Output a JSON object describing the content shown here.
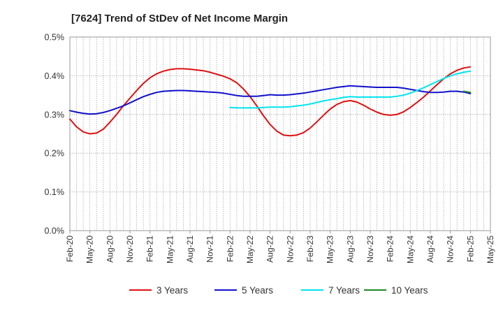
{
  "chart_data": {
    "type": "line",
    "title": "[7624]  Trend of StDev of Net Income Margin",
    "xlabel": "",
    "ylabel": "",
    "x_ticks": [
      "Feb-20",
      "May-20",
      "Aug-20",
      "Nov-20",
      "Feb-21",
      "May-21",
      "Aug-21",
      "Nov-21",
      "Feb-22",
      "May-22",
      "Aug-22",
      "Nov-22",
      "Feb-23",
      "May-23",
      "Aug-23",
      "Nov-23",
      "Feb-24",
      "May-24",
      "Aug-24",
      "Nov-24",
      "Feb-25",
      "May-25"
    ],
    "y_ticks": [
      "0.0%",
      "0.1%",
      "0.2%",
      "0.3%",
      "0.4%",
      "0.5%"
    ],
    "ylim": [
      0,
      0.5
    ],
    "y_unit": "%",
    "grid": true,
    "legend_position": "bottom",
    "series": [
      {
        "name": "3 Years",
        "color": "#dd1111",
        "points": [
          [
            "Feb-20",
            0.288
          ],
          [
            "Mar-20",
            0.268
          ],
          [
            "Apr-20",
            0.255
          ],
          [
            "May-20",
            0.25
          ],
          [
            "Jun-20",
            0.252
          ],
          [
            "Jul-20",
            0.262
          ],
          [
            "Aug-20",
            0.28
          ],
          [
            "Sep-20",
            0.3
          ],
          [
            "Oct-20",
            0.322
          ],
          [
            "Nov-20",
            0.342
          ],
          [
            "Dec-20",
            0.362
          ],
          [
            "Jan-21",
            0.38
          ],
          [
            "Feb-21",
            0.395
          ],
          [
            "Mar-21",
            0.405
          ],
          [
            "Apr-21",
            0.412
          ],
          [
            "May-21",
            0.416
          ],
          [
            "Jun-21",
            0.418
          ],
          [
            "Jul-21",
            0.418
          ],
          [
            "Aug-21",
            0.417
          ],
          [
            "Sep-21",
            0.415
          ],
          [
            "Oct-21",
            0.413
          ],
          [
            "Nov-21",
            0.409
          ],
          [
            "Dec-21",
            0.404
          ],
          [
            "Jan-22",
            0.399
          ],
          [
            "Feb-22",
            0.392
          ],
          [
            "Mar-22",
            0.382
          ],
          [
            "Apr-22",
            0.366
          ],
          [
            "May-22",
            0.346
          ],
          [
            "Jun-22",
            0.322
          ],
          [
            "Jul-22",
            0.297
          ],
          [
            "Aug-22",
            0.274
          ],
          [
            "Sep-22",
            0.257
          ],
          [
            "Oct-22",
            0.247
          ],
          [
            "Nov-22",
            0.245
          ],
          [
            "Dec-22",
            0.247
          ],
          [
            "Jan-23",
            0.253
          ],
          [
            "Feb-23",
            0.265
          ],
          [
            "Mar-23",
            0.281
          ],
          [
            "Apr-23",
            0.298
          ],
          [
            "May-23",
            0.314
          ],
          [
            "Jun-23",
            0.326
          ],
          [
            "Jul-23",
            0.333
          ],
          [
            "Aug-23",
            0.336
          ],
          [
            "Sep-23",
            0.332
          ],
          [
            "Oct-23",
            0.324
          ],
          [
            "Nov-23",
            0.314
          ],
          [
            "Dec-23",
            0.306
          ],
          [
            "Jan-24",
            0.3
          ],
          [
            "Feb-24",
            0.298
          ],
          [
            "Mar-24",
            0.3
          ],
          [
            "Apr-24",
            0.307
          ],
          [
            "May-24",
            0.318
          ],
          [
            "Jun-24",
            0.331
          ],
          [
            "Jul-24",
            0.345
          ],
          [
            "Aug-24",
            0.361
          ],
          [
            "Sep-24",
            0.377
          ],
          [
            "Oct-24",
            0.392
          ],
          [
            "Nov-24",
            0.405
          ],
          [
            "Dec-24",
            0.414
          ],
          [
            "Jan-25",
            0.42
          ],
          [
            "Feb-25",
            0.423
          ]
        ]
      },
      {
        "name": "5 Years",
        "color": "#1111cc",
        "points": [
          [
            "Feb-20",
            0.31
          ],
          [
            "Mar-20",
            0.306
          ],
          [
            "Apr-20",
            0.303
          ],
          [
            "May-20",
            0.301
          ],
          [
            "Jun-20",
            0.302
          ],
          [
            "Jul-20",
            0.305
          ],
          [
            "Aug-20",
            0.31
          ],
          [
            "Sep-20",
            0.316
          ],
          [
            "Oct-20",
            0.322
          ],
          [
            "Nov-20",
            0.33
          ],
          [
            "Dec-20",
            0.338
          ],
          [
            "Jan-21",
            0.346
          ],
          [
            "Feb-21",
            0.352
          ],
          [
            "Mar-21",
            0.357
          ],
          [
            "Apr-21",
            0.36
          ],
          [
            "May-21",
            0.361
          ],
          [
            "Jun-21",
            0.362
          ],
          [
            "Jul-21",
            0.362
          ],
          [
            "Aug-21",
            0.361
          ],
          [
            "Sep-21",
            0.36
          ],
          [
            "Oct-21",
            0.359
          ],
          [
            "Nov-21",
            0.358
          ],
          [
            "Dec-21",
            0.357
          ],
          [
            "Jan-22",
            0.355
          ],
          [
            "Feb-22",
            0.352
          ],
          [
            "Mar-22",
            0.349
          ],
          [
            "Apr-22",
            0.347
          ],
          [
            "May-22",
            0.347
          ],
          [
            "Jun-22",
            0.347
          ],
          [
            "Jul-22",
            0.349
          ],
          [
            "Aug-22",
            0.351
          ],
          [
            "Sep-22",
            0.35
          ],
          [
            "Oct-22",
            0.35
          ],
          [
            "Nov-22",
            0.351
          ],
          [
            "Dec-22",
            0.353
          ],
          [
            "Jan-23",
            0.355
          ],
          [
            "Feb-23",
            0.358
          ],
          [
            "Mar-23",
            0.361
          ],
          [
            "Apr-23",
            0.364
          ],
          [
            "May-23",
            0.367
          ],
          [
            "Jun-23",
            0.37
          ],
          [
            "Jul-23",
            0.372
          ],
          [
            "Aug-23",
            0.374
          ],
          [
            "Sep-23",
            0.373
          ],
          [
            "Oct-23",
            0.372
          ],
          [
            "Nov-23",
            0.371
          ],
          [
            "Dec-23",
            0.37
          ],
          [
            "Jan-24",
            0.37
          ],
          [
            "Feb-24",
            0.37
          ],
          [
            "Mar-24",
            0.37
          ],
          [
            "Apr-24",
            0.368
          ],
          [
            "May-24",
            0.365
          ],
          [
            "Jun-24",
            0.362
          ],
          [
            "Jul-24",
            0.359
          ],
          [
            "Aug-24",
            0.357
          ],
          [
            "Sep-24",
            0.357
          ],
          [
            "Oct-24",
            0.358
          ],
          [
            "Nov-24",
            0.36
          ],
          [
            "Dec-24",
            0.36
          ],
          [
            "Jan-25",
            0.358
          ],
          [
            "Feb-25",
            0.354
          ]
        ]
      },
      {
        "name": "7 Years",
        "color": "#00e5ee",
        "points": [
          [
            "Feb-22",
            0.318
          ],
          [
            "Mar-22",
            0.317
          ],
          [
            "Apr-22",
            0.317
          ],
          [
            "May-22",
            0.317
          ],
          [
            "Jun-22",
            0.317
          ],
          [
            "Jul-22",
            0.318
          ],
          [
            "Aug-22",
            0.319
          ],
          [
            "Sep-22",
            0.319
          ],
          [
            "Oct-22",
            0.319
          ],
          [
            "Nov-22",
            0.32
          ],
          [
            "Dec-22",
            0.322
          ],
          [
            "Jan-23",
            0.324
          ],
          [
            "Feb-23",
            0.327
          ],
          [
            "Mar-23",
            0.331
          ],
          [
            "Apr-23",
            0.335
          ],
          [
            "May-23",
            0.338
          ],
          [
            "Jun-23",
            0.341
          ],
          [
            "Jul-23",
            0.344
          ],
          [
            "Aug-23",
            0.346
          ],
          [
            "Sep-23",
            0.345
          ],
          [
            "Oct-23",
            0.345
          ],
          [
            "Nov-23",
            0.345
          ],
          [
            "Dec-23",
            0.345
          ],
          [
            "Jan-24",
            0.345
          ],
          [
            "Feb-24",
            0.345
          ],
          [
            "Mar-24",
            0.347
          ],
          [
            "Apr-24",
            0.35
          ],
          [
            "May-24",
            0.355
          ],
          [
            "Jun-24",
            0.362
          ],
          [
            "Jul-24",
            0.369
          ],
          [
            "Aug-24",
            0.377
          ],
          [
            "Sep-24",
            0.385
          ],
          [
            "Oct-24",
            0.393
          ],
          [
            "Nov-24",
            0.4
          ],
          [
            "Dec-24",
            0.405
          ],
          [
            "Jan-25",
            0.409
          ],
          [
            "Feb-25",
            0.412
          ]
        ]
      },
      {
        "name": "10 Years",
        "color": "#228822",
        "points": [
          [
            "Jan-25",
            0.36
          ],
          [
            "Feb-25",
            0.357
          ]
        ]
      }
    ]
  }
}
